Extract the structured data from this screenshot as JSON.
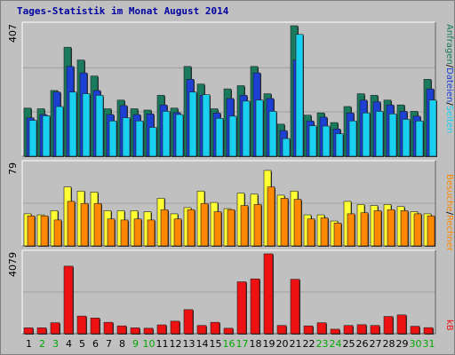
{
  "title": "Tages-Statistik im Monat August 2014",
  "colors": {
    "background": "#c0c0c0",
    "plot_bg": "#c0c0c0",
    "grid": "#a0a0a0",
    "anfragen": "#1a7a5e",
    "dateien": "#1c3fd4",
    "seiten": "#1ad0f0",
    "besuche": "#ffff33",
    "rechner": "#ff8800",
    "kb": "#ee1111",
    "weekend_label": "#00aa00",
    "weekday_label": "#000000",
    "title": "#0000a0"
  },
  "chart_data": [
    {
      "type": "bar",
      "panel": "top",
      "ymax_label": "407",
      "ylim": [
        0,
        407
      ],
      "series": [
        {
          "name": "Anfragen",
          "color_key": "anfragen",
          "values": [
            150,
            148,
            205,
            340,
            300,
            250,
            148,
            175,
            148,
            144,
            190,
            150,
            280,
            225,
            148,
            210,
            220,
            280,
            195,
            100,
            407,
            128,
            135,
            105,
            155,
            195,
            190,
            175,
            160,
            140,
            240
          ]
        },
        {
          "name": "Dateien",
          "color_key": "dateien",
          "values": [
            120,
            130,
            200,
            280,
            260,
            205,
            130,
            158,
            130,
            132,
            160,
            136,
            240,
            190,
            135,
            180,
            190,
            260,
            180,
            80,
            300,
            110,
            122,
            85,
            135,
            175,
            170,
            160,
            140,
            125,
            210
          ]
        },
        {
          "name": "Seiten",
          "color_key": "seiten",
          "values": [
            112,
            126,
            155,
            200,
            195,
            190,
            110,
            120,
            110,
            90,
            140,
            130,
            200,
            192,
            118,
            125,
            172,
            175,
            140,
            55,
            380,
            95,
            94,
            70,
            110,
            135,
            140,
            132,
            115,
            110,
            175
          ]
        }
      ],
      "legend": [
        "Anfragen",
        "Dateien",
        "Seiten"
      ]
    },
    {
      "type": "bar",
      "panel": "middle",
      "ymax_label": "79",
      "ylim": [
        0,
        79
      ],
      "series": [
        {
          "name": "Besuche",
          "color_key": "besuche",
          "values": [
            31,
            30,
            34,
            57,
            53,
            52,
            34,
            34,
            34,
            33,
            46,
            31,
            37,
            53,
            42,
            36,
            51,
            50,
            73,
            49,
            53,
            30,
            30,
            24,
            43,
            40,
            39,
            40,
            38,
            33,
            31
          ]
        },
        {
          "name": "Rechner",
          "color_key": "rechner",
          "values": [
            29,
            29,
            25,
            43,
            41,
            41,
            26,
            25,
            26,
            25,
            35,
            26,
            35,
            41,
            33,
            35,
            39,
            40,
            57,
            46,
            45,
            26,
            27,
            22,
            31,
            32,
            34,
            35,
            34,
            31,
            29
          ]
        }
      ],
      "legend": [
        "Besuche",
        "Rechner"
      ]
    },
    {
      "type": "bar",
      "panel": "bottom",
      "ymax_label": "4079",
      "ylim": [
        0,
        4079
      ],
      "series": [
        {
          "name": "kB",
          "color_key": "kb",
          "values": [
            300,
            300,
            560,
            3450,
            900,
            800,
            580,
            400,
            300,
            280,
            450,
            640,
            1230,
            420,
            580,
            280,
            2650,
            2800,
            4079,
            420,
            2780,
            400,
            560,
            230,
            420,
            460,
            420,
            880,
            960,
            380,
            310
          ]
        }
      ],
      "legend": [
        "kB"
      ]
    }
  ],
  "x_labels": [
    "1",
    "2",
    "3",
    "4",
    "5",
    "6",
    "7",
    "8",
    "9",
    "10",
    "11",
    "12",
    "13",
    "14",
    "15",
    "16",
    "17",
    "18",
    "19",
    "20",
    "21",
    "22",
    "23",
    "24",
    "25",
    "26",
    "27",
    "28",
    "29",
    "30",
    "31"
  ],
  "weekend_days": [
    "2",
    "3",
    "9",
    "10",
    "16",
    "17",
    "23",
    "24",
    "30",
    "31"
  ],
  "right_legend_top": [
    {
      "text": "Anfragen",
      "color_key": "anfragen"
    },
    {
      "text": "/",
      "color_key": "weekday_label"
    },
    {
      "text": "Dateien",
      "color_key": "dateien"
    },
    {
      "text": "/",
      "color_key": "weekday_label"
    },
    {
      "text": "Seiten",
      "color_key": "seiten"
    }
  ],
  "right_legend_mid": [
    {
      "text": "Besuche",
      "color_key": "rechner"
    },
    {
      "text": "/",
      "color_key": "weekday_label"
    },
    {
      "text": "Rechner",
      "color_key": "rechner"
    }
  ],
  "right_legend_bottom": [
    {
      "text": "kB",
      "color_key": "kb"
    }
  ]
}
